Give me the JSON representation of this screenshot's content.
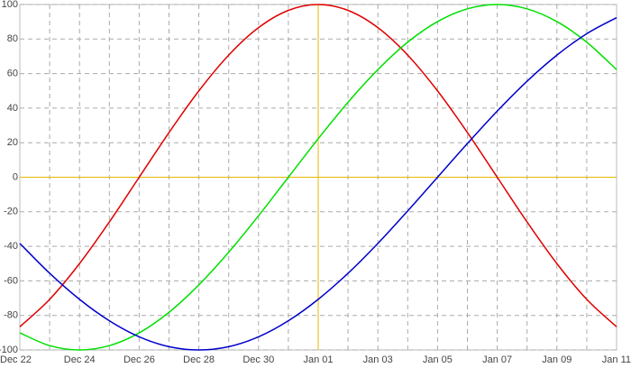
{
  "chart_data": {
    "type": "line",
    "categories": [
      "Dec 22",
      null,
      "Dec 24",
      null,
      "Dec 26",
      null,
      "Dec 28",
      null,
      "Dec 30",
      null,
      "Jan 01",
      null,
      "Jan 03",
      null,
      "Jan 05",
      null,
      "Jan 07",
      null,
      "Jan 09",
      null,
      "Jan 11"
    ],
    "series": [
      {
        "color": "#e00000",
        "values": [
          -86.6,
          -70.7,
          -50,
          -25.9,
          0,
          25.9,
          50,
          70.7,
          86.6,
          96.6,
          100,
          96.6,
          86.6,
          70.7,
          50,
          25.9,
          0,
          -25.9,
          -50,
          -70.7,
          -86.6
        ]
      },
      {
        "color": "#00e000",
        "values": [
          -90.1,
          -97.5,
          -100,
          -97.5,
          -90.1,
          -78.2,
          -62.3,
          -43.4,
          -22.3,
          0,
          22.3,
          43.4,
          62.3,
          78.2,
          90.1,
          97.5,
          100,
          97.5,
          90.1,
          78.2,
          62.3
        ]
      },
      {
        "color": "#0000cc",
        "values": [
          -38.3,
          -55.6,
          -70.7,
          -83.1,
          -92.4,
          -98.1,
          -100,
          -98.1,
          -92.4,
          -83.1,
          -70.7,
          -55.6,
          -38.3,
          -19.5,
          0,
          19.5,
          38.3,
          55.6,
          70.7,
          83.1,
          92.4
        ]
      }
    ],
    "ylim": [
      -100,
      100
    ],
    "yticks": [
      -100,
      -80,
      -60,
      -40,
      -20,
      0,
      20,
      40,
      60,
      80,
      100
    ],
    "grid": true,
    "reference_lines": {
      "x": "Jan 01",
      "y": 0,
      "color": "#e6b800"
    }
  }
}
